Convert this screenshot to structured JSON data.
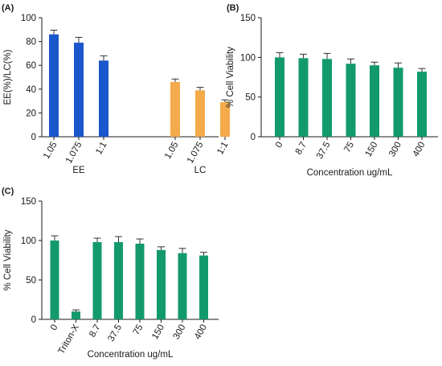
{
  "chart_data": [
    {
      "panel_label": "(A)",
      "type": "bar",
      "ylabel": "EE(%)/LC(%)",
      "ylim": [
        0,
        100
      ],
      "yticks": [
        0,
        20,
        40,
        60,
        80,
        100
      ],
      "groups": [
        {
          "name": "EE",
          "color": "#1a56cc",
          "categories": [
            "1.05",
            "1.075",
            "1:1"
          ],
          "values": [
            86,
            79,
            64
          ],
          "errors": [
            3.5,
            4.5,
            4
          ]
        },
        {
          "name": "LC",
          "color": "#f4ab4b",
          "categories": [
            "1.05",
            "1.075",
            "1:1"
          ],
          "values": [
            46,
            39,
            29
          ],
          "errors": [
            2.5,
            2.5,
            2
          ]
        }
      ],
      "grid": false
    },
    {
      "panel_label": "(B)",
      "type": "bar",
      "ylabel": "% Cell Viability",
      "xlabel": "Concentration ug/mL",
      "ylim": [
        0,
        150
      ],
      "yticks": [
        0,
        50,
        100,
        150
      ],
      "color": "#139a6c",
      "categories": [
        "0",
        "8.7",
        "37.5",
        "75",
        "150",
        "300",
        "400"
      ],
      "values": [
        100,
        99,
        98,
        92,
        90,
        87,
        82
      ],
      "errors": [
        6,
        5,
        7,
        6,
        4,
        6,
        4
      ],
      "grid": false
    },
    {
      "panel_label": "(C)",
      "type": "bar",
      "ylabel": "% Cell Viability",
      "xlabel": "Concentration ug/mL",
      "ylim": [
        0,
        150
      ],
      "yticks": [
        0,
        50,
        100,
        150
      ],
      "color": "#139a6c",
      "categories": [
        "0",
        "Triton-X",
        "8.7",
        "37.5",
        "75",
        "150",
        "300",
        "400"
      ],
      "values": [
        100,
        10,
        98,
        98,
        96,
        88,
        84,
        81
      ],
      "errors": [
        6,
        2,
        5,
        7,
        6,
        4,
        6,
        4
      ],
      "grid": false
    }
  ]
}
